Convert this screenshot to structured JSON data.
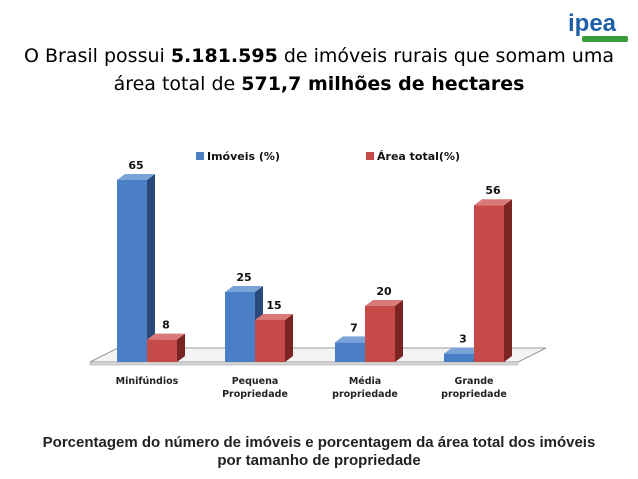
{
  "logo": {
    "text": "ipea"
  },
  "title": {
    "line1_pre": "O Brasil possui ",
    "line1_bold": "5.181.595",
    "line1_post": " de imóveis rurais que somam uma",
    "line2_pre": "área total de ",
    "line2_bold": "571,7 milhões de hectares"
  },
  "caption": {
    "line1": "Porcentagem do número de imóveis e porcentagem da área total dos imóveis",
    "line2": "por tamanho de propriedade"
  },
  "colors": {
    "blue_front": "#4a7ec5",
    "blue_side": "#28497a",
    "blue_top": "#7aa3d8",
    "red_front": "#c64a48",
    "red_side": "#7a2524",
    "red_top": "#d97a78"
  },
  "chart_data": {
    "type": "bar",
    "categories": [
      [
        "Minifúndios"
      ],
      [
        "Pequena",
        "Propriedade"
      ],
      [
        "Média",
        "propriedade"
      ],
      [
        "Grande",
        "propriedade"
      ]
    ],
    "series": [
      {
        "name": "Imóveis (%)",
        "values": [
          65,
          25,
          7,
          3
        ]
      },
      {
        "name": "Área total(%)",
        "values": [
          8,
          15,
          20,
          56
        ]
      }
    ],
    "ylim": [
      0,
      65
    ],
    "legend": "top",
    "grid": false
  }
}
